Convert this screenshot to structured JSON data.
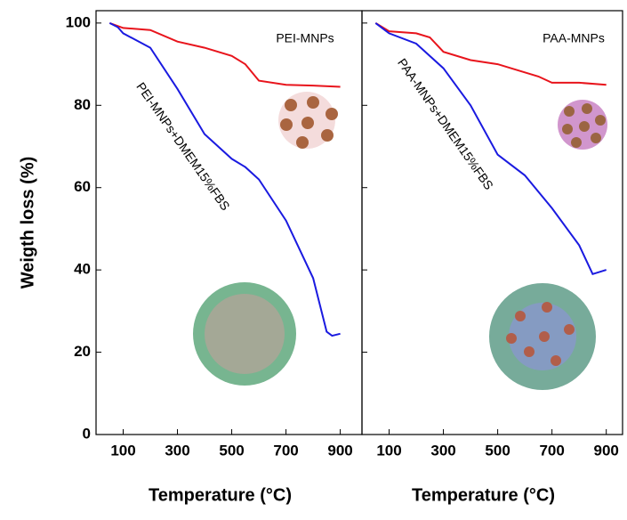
{
  "chart_data": [
    {
      "type": "line",
      "xlabel": "Temperature (°C)",
      "ylabel": "Weigth loss (%)",
      "xlim": [
        0,
        980
      ],
      "xticks": [
        100,
        300,
        500,
        700,
        900
      ],
      "ylim": [
        0,
        103
      ],
      "yticks": [
        0,
        20,
        40,
        60,
        80,
        100
      ],
      "annotations": [
        "PEI-MNPs",
        "PEI-MNPs+DMEM15%FBS"
      ],
      "series": [
        {
          "color": "#e8141c",
          "x": [
            50,
            100,
            200,
            300,
            400,
            500,
            550,
            600,
            700,
            800,
            900
          ],
          "values": [
            100,
            98.8,
            98.3,
            95.5,
            94,
            92,
            90,
            86,
            85,
            84.8,
            84.5
          ]
        },
        {
          "color": "#1a1ae0",
          "x": [
            50,
            80,
            100,
            200,
            300,
            400,
            500,
            550,
            600,
            700,
            800,
            850,
            870,
            900
          ],
          "values": [
            100,
            99,
            97.5,
            94,
            84,
            73,
            67,
            65,
            62,
            52,
            38,
            25,
            24,
            24.5
          ]
        }
      ]
    },
    {
      "type": "line",
      "xlabel": "Temperature (°C)",
      "xlim": [
        0,
        960
      ],
      "xticks": [
        100,
        300,
        500,
        700,
        900
      ],
      "ylim": [
        0,
        103
      ],
      "yticks": [
        0,
        20,
        40,
        60,
        80,
        100
      ],
      "annotations": [
        "PAA-MNPs",
        "PAA-MNPs+DMEM15%FBS"
      ],
      "series": [
        {
          "color": "#e8141c",
          "x": [
            50,
            100,
            200,
            250,
            300,
            400,
            500,
            600,
            650,
            700,
            800,
            900
          ],
          "values": [
            100,
            98,
            97.5,
            96.5,
            93,
            91,
            90,
            88,
            87,
            85.5,
            85.5,
            85
          ]
        },
        {
          "color": "#1a1ae0",
          "x": [
            50,
            100,
            200,
            300,
            400,
            500,
            600,
            700,
            800,
            850,
            900
          ],
          "values": [
            100,
            97.5,
            95,
            89,
            80,
            68,
            63,
            55,
            46,
            39,
            40
          ]
        }
      ]
    }
  ]
}
